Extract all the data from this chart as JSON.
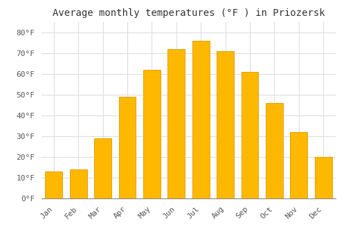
{
  "title": "Average monthly temperatures (°F ) in Priozersk",
  "months": [
    "Jan",
    "Feb",
    "Mar",
    "Apr",
    "May",
    "Jun",
    "Jul",
    "Aug",
    "Sep",
    "Oct",
    "Nov",
    "Dec"
  ],
  "values": [
    13,
    14,
    29,
    49,
    62,
    72,
    76,
    71,
    61,
    46,
    32,
    20
  ],
  "bar_color": "#FFB800",
  "bar_edge_color": "#E8A000",
  "background_color": "#FFFFFF",
  "grid_color": "#DDDDDD",
  "ylim": [
    0,
    85
  ],
  "yticks": [
    0,
    10,
    20,
    30,
    40,
    50,
    60,
    70,
    80
  ],
  "ylabel_suffix": "°F",
  "title_fontsize": 10,
  "tick_fontsize": 8,
  "font_family": "monospace"
}
